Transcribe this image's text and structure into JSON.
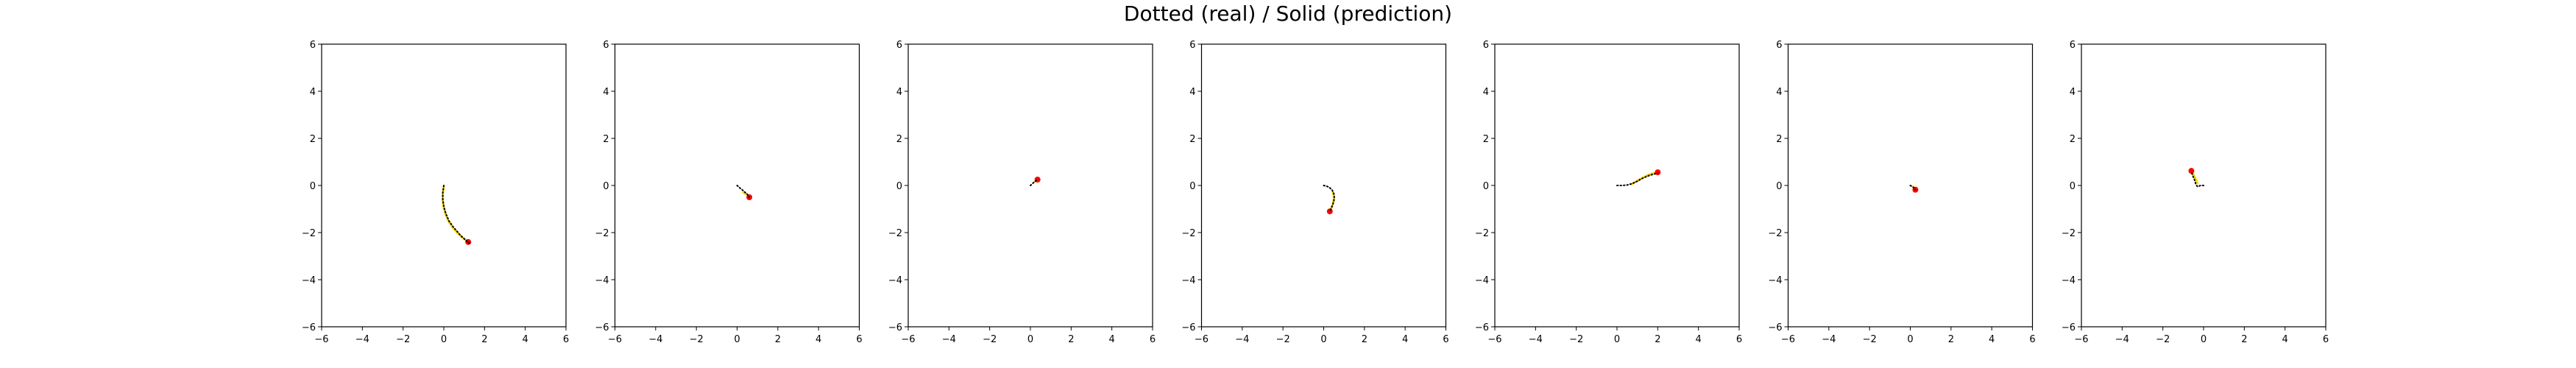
{
  "figure": {
    "title": "Dotted (real) / Solid (prediction)"
  },
  "style": {
    "real_color": "#000000",
    "prediction_color": "#ffd700",
    "endpoint_color": "#ff0000",
    "frame_color": "#000000"
  },
  "chart_data": [
    {
      "type": "line",
      "xlim": [
        -6,
        6
      ],
      "ylim": [
        -6,
        6
      ],
      "xticks": [
        -6,
        -4,
        -2,
        0,
        2,
        4,
        6
      ],
      "yticks": [
        -6,
        -4,
        -2,
        0,
        2,
        4,
        6
      ],
      "grid": false,
      "series": [
        {
          "role": "real",
          "x": [
            0.0,
            -0.05,
            -0.05,
            0.0,
            0.1,
            0.25,
            0.45,
            0.65,
            0.85,
            1.05,
            1.25
          ],
          "y": [
            0.0,
            -0.3,
            -0.6,
            -0.9,
            -1.2,
            -1.5,
            -1.75,
            -1.95,
            -2.15,
            -2.3,
            -2.45
          ]
        },
        {
          "role": "prediction",
          "x": [
            0.0,
            -0.05,
            -0.05,
            0.0,
            0.1,
            0.25,
            0.45,
            0.65,
            0.85,
            1.05,
            1.2
          ],
          "y": [
            -0.05,
            -0.35,
            -0.65,
            -0.95,
            -1.25,
            -1.55,
            -1.8,
            -2.0,
            -2.15,
            -2.3,
            -2.4
          ]
        }
      ]
    },
    {
      "type": "line",
      "xlim": [
        -6,
        6
      ],
      "ylim": [
        -6,
        6
      ],
      "xticks": [
        -6,
        -4,
        -2,
        0,
        2,
        4,
        6
      ],
      "yticks": [
        -6,
        -4,
        -2,
        0,
        2,
        4,
        6
      ],
      "grid": false,
      "series": [
        {
          "role": "real",
          "x": [
            0.0,
            0.1,
            0.2,
            0.3,
            0.4,
            0.5,
            0.55,
            0.6
          ],
          "y": [
            0.0,
            -0.08,
            -0.15,
            -0.22,
            -0.3,
            -0.37,
            -0.45,
            -0.5
          ]
        },
        {
          "role": "prediction",
          "x": [
            0.3,
            0.4,
            0.5,
            0.55,
            0.6
          ],
          "y": [
            -0.3,
            -0.35,
            -0.4,
            -0.45,
            -0.5
          ]
        }
      ]
    },
    {
      "type": "line",
      "xlim": [
        -6,
        6
      ],
      "ylim": [
        -6,
        6
      ],
      "xticks": [
        -6,
        -4,
        -2,
        0,
        2,
        4,
        6
      ],
      "yticks": [
        -6,
        -4,
        -2,
        0,
        2,
        4,
        6
      ],
      "grid": false,
      "series": [
        {
          "role": "real",
          "x": [
            0.0,
            0.08,
            0.15,
            0.22,
            0.3
          ],
          "y": [
            0.0,
            0.06,
            0.12,
            0.17,
            0.22
          ]
        },
        {
          "role": "prediction",
          "x": [
            0.2,
            0.25,
            0.3,
            0.35
          ],
          "y": [
            0.15,
            0.18,
            0.22,
            0.25
          ]
        }
      ]
    },
    {
      "type": "line",
      "xlim": [
        -6,
        6
      ],
      "ylim": [
        -6,
        6
      ],
      "xticks": [
        -6,
        -4,
        -2,
        0,
        2,
        4,
        6
      ],
      "yticks": [
        -6,
        -4,
        -2,
        0,
        2,
        4,
        6
      ],
      "grid": false,
      "series": [
        {
          "role": "real",
          "x": [
            0.0,
            0.15,
            0.3,
            0.42,
            0.5,
            0.52,
            0.5,
            0.45,
            0.38,
            0.3
          ],
          "y": [
            0.0,
            -0.03,
            -0.1,
            -0.2,
            -0.35,
            -0.5,
            -0.65,
            -0.8,
            -0.95,
            -1.1
          ]
        },
        {
          "role": "prediction",
          "x": [
            0.45,
            0.5,
            0.5,
            0.45,
            0.38,
            0.3
          ],
          "y": [
            -0.3,
            -0.45,
            -0.6,
            -0.78,
            -0.95,
            -1.1
          ]
        }
      ]
    },
    {
      "type": "line",
      "xlim": [
        -6,
        6
      ],
      "ylim": [
        -6,
        6
      ],
      "xticks": [
        -6,
        -4,
        -2,
        0,
        2,
        4,
        6
      ],
      "yticks": [
        -6,
        -4,
        -2,
        0,
        2,
        4,
        6
      ],
      "grid": false,
      "series": [
        {
          "role": "real",
          "x": [
            0.0,
            0.25,
            0.5,
            0.75,
            1.0,
            1.2,
            1.4,
            1.6,
            1.8,
            2.0
          ],
          "y": [
            0.0,
            0.0,
            0.02,
            0.08,
            0.18,
            0.28,
            0.36,
            0.43,
            0.48,
            0.52
          ]
        },
        {
          "role": "prediction",
          "x": [
            0.7,
            0.9,
            1.1,
            1.3,
            1.5,
            1.7,
            1.9,
            2.0
          ],
          "y": [
            0.05,
            0.15,
            0.25,
            0.35,
            0.43,
            0.5,
            0.54,
            0.56
          ]
        }
      ]
    },
    {
      "type": "line",
      "xlim": [
        -6,
        6
      ],
      "ylim": [
        -6,
        6
      ],
      "xticks": [
        -6,
        -4,
        -2,
        0,
        2,
        4,
        6
      ],
      "yticks": [
        -6,
        -4,
        -2,
        0,
        2,
        4,
        6
      ],
      "grid": false,
      "series": [
        {
          "role": "real",
          "x": [
            0.0,
            0.1,
            0.2,
            0.25
          ],
          "y": [
            0.0,
            -0.05,
            -0.12,
            -0.18
          ]
        },
        {
          "role": "prediction",
          "x": [
            0.15,
            0.2,
            0.25
          ],
          "y": [
            -0.05,
            -0.1,
            -0.18
          ]
        }
      ]
    },
    {
      "type": "line",
      "xlim": [
        -6,
        6
      ],
      "ylim": [
        -6,
        6
      ],
      "xticks": [
        -6,
        -4,
        -2,
        0,
        2,
        4,
        6
      ],
      "yticks": [
        -6,
        -4,
        -2,
        0,
        2,
        4,
        6
      ],
      "grid": false,
      "series": [
        {
          "role": "real",
          "x": [
            0.0,
            -0.15,
            -0.3,
            -0.38,
            -0.45,
            -0.55,
            -0.6
          ],
          "y": [
            0.0,
            0.0,
            -0.05,
            0.05,
            0.25,
            0.45,
            0.6
          ]
        },
        {
          "role": "prediction",
          "x": [
            -0.3,
            -0.4,
            -0.5,
            -0.6
          ],
          "y": [
            0.1,
            0.3,
            0.48,
            0.62
          ]
        }
      ]
    }
  ]
}
